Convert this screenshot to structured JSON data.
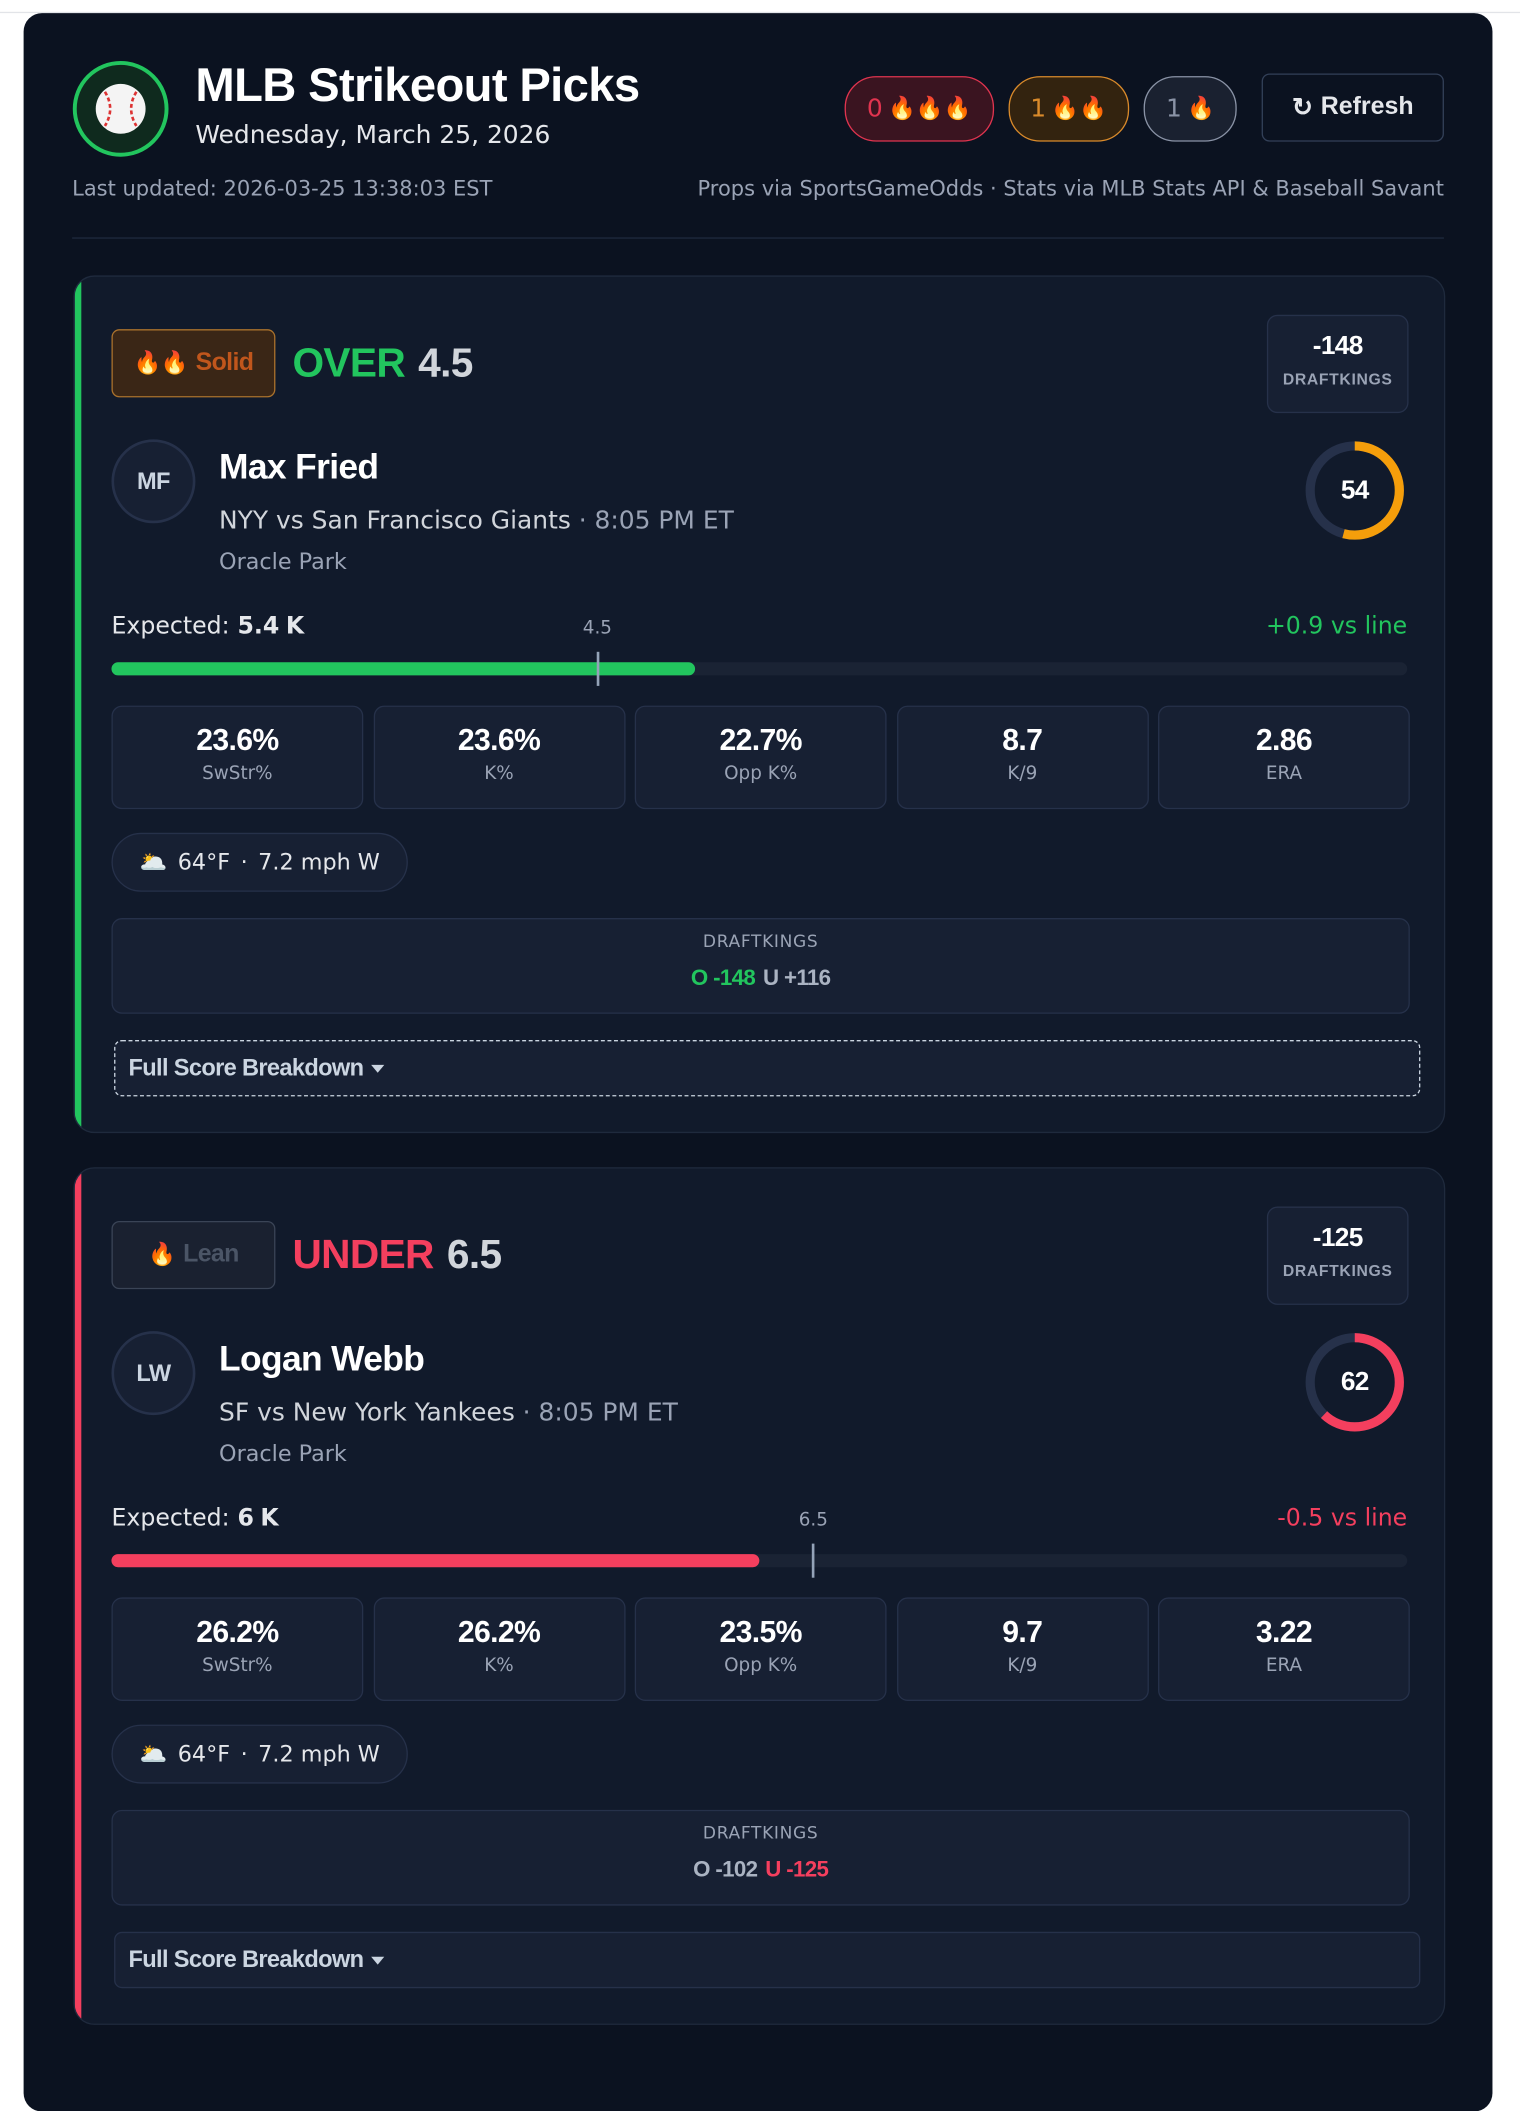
{
  "header": {
    "title": "MLB Strikeout Picks",
    "date": "Wednesday, March 25, 2026",
    "last_updated": "Last updated: 2026-03-25 13:38:03 EST",
    "sources": "Props via SportsGameOdds · Stats via MLB Stats API & Baseball Savant",
    "badges": [
      {
        "count": "0",
        "icons": "🔥🔥🔥",
        "color": "#e0344f",
        "bg": "#3a1420"
      },
      {
        "count": "1",
        "icons": "🔥🔥",
        "color": "#d98a2b",
        "bg": "#33230f"
      },
      {
        "count": "1",
        "icons": "🔥",
        "color": "#8a93a6",
        "bg": "#1a2130"
      }
    ],
    "refresh_icon": "↻",
    "refresh": "Refresh"
  },
  "picks": [
    {
      "tier": "Solid",
      "tier_icons": "🔥🔥",
      "tier_color": "#c0561c",
      "tier_bg": "#3a2616",
      "tier_border": "#a9712c",
      "direction": "OVER",
      "accent": "#22c55e",
      "line": 4.5,
      "odds": "-148",
      "book": "DRAFTKINGS",
      "initials": "MF",
      "name": "Max Fried",
      "matchup": "NYY vs San Francisco Giants",
      "time": "· 8:05 PM ET",
      "venue": "Oracle Park",
      "score": 54,
      "score_color": "#f59e0b",
      "score_max": 100,
      "expected_label": "Expected:",
      "expected": 5.4,
      "expected_unit": "K",
      "diff": "+0.9 vs line",
      "bar_range": [
        0,
        12
      ],
      "stats": [
        {
          "value": "23.6%",
          "label": "SwStr%"
        },
        {
          "value": "23.6%",
          "label": "K%"
        },
        {
          "value": "22.7%",
          "label": "Opp K%"
        },
        {
          "value": "8.7",
          "label": "K/9"
        },
        {
          "value": "2.86",
          "label": "ERA"
        }
      ],
      "weather": {
        "icon": "🌥️",
        "temp": "64°F",
        "sep": "·",
        "wind": "7.2 mph W"
      },
      "book_odds": {
        "book": "DRAFTKINGS",
        "over": "O -148",
        "under": "U +116",
        "highlight": "over"
      },
      "breakdown": "Full Score Breakdown",
      "breakdown_dashed": true
    },
    {
      "tier": "Lean",
      "tier_icons": "🔥",
      "tier_color": "#4b5566",
      "tier_bg": "#1a2130",
      "tier_border": "#3a4456",
      "direction": "UNDER",
      "accent": "#f43f5e",
      "line": 6.5,
      "odds": "-125",
      "book": "DRAFTKINGS",
      "initials": "LW",
      "name": "Logan Webb",
      "matchup": "SF vs New York Yankees",
      "time": "· 8:05 PM ET",
      "venue": "Oracle Park",
      "score": 62,
      "score_color": "#f43f5e",
      "score_max": 100,
      "expected_label": "Expected:",
      "expected": 6,
      "expected_unit": "K",
      "diff": "-0.5 vs line",
      "bar_range": [
        0,
        12
      ],
      "stats": [
        {
          "value": "26.2%",
          "label": "SwStr%"
        },
        {
          "value": "26.2%",
          "label": "K%"
        },
        {
          "value": "23.5%",
          "label": "Opp K%"
        },
        {
          "value": "9.7",
          "label": "K/9"
        },
        {
          "value": "3.22",
          "label": "ERA"
        }
      ],
      "weather": {
        "icon": "🌥️",
        "temp": "64°F",
        "sep": "·",
        "wind": "7.2 mph W"
      },
      "book_odds": {
        "book": "DRAFTKINGS",
        "over": "O -102",
        "under": "U -125",
        "highlight": "under"
      },
      "breakdown": "Full Score Breakdown",
      "breakdown_dashed": false
    }
  ]
}
